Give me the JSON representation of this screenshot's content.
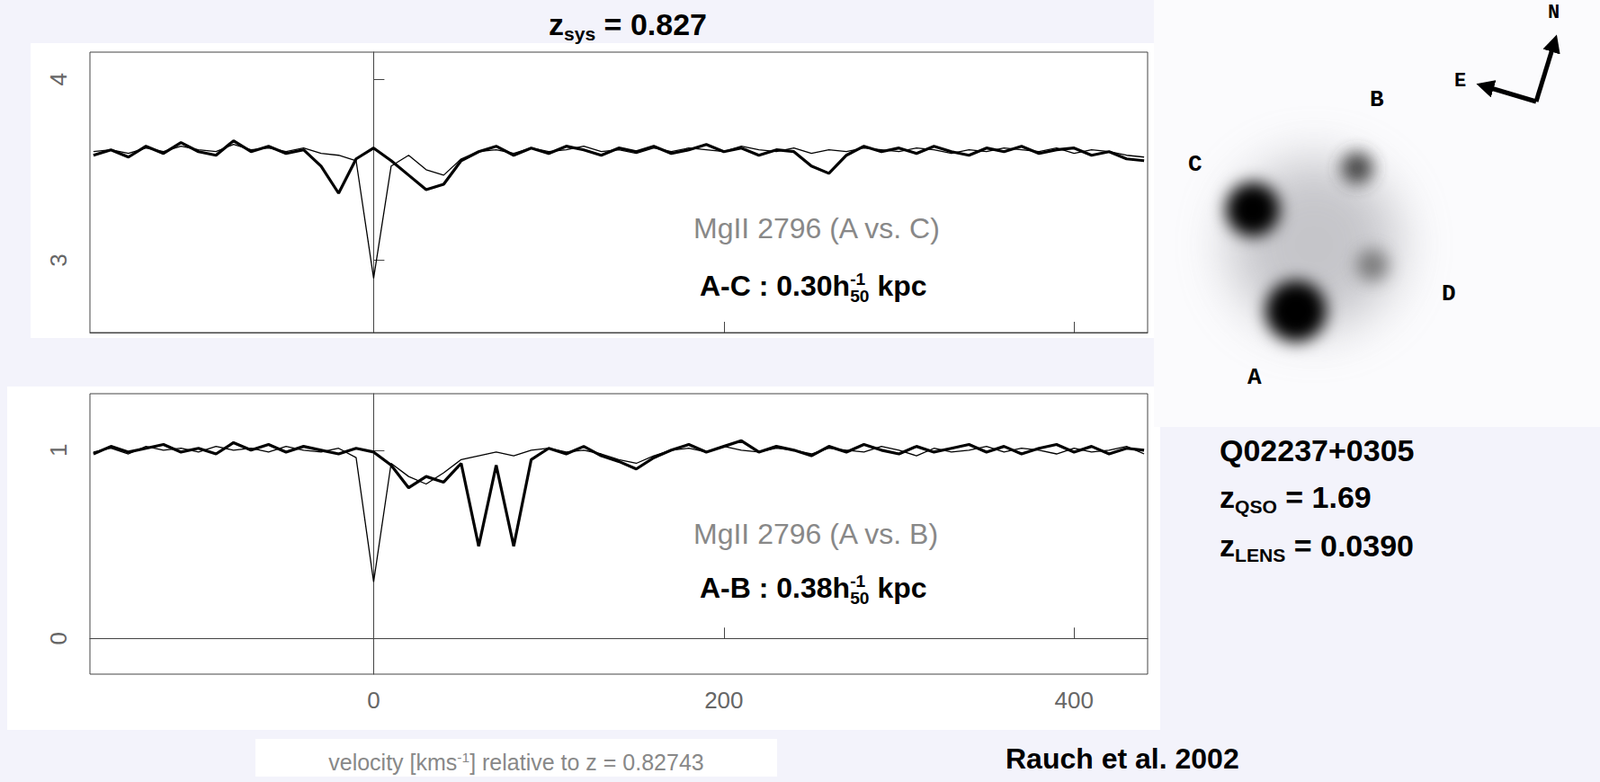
{
  "chart_data": [
    {
      "type": "line",
      "annotation": "MgII 2796 (A vs. C)",
      "separation": {
        "text": "A-C : 0.30h",
        "sub": "50",
        "sup": "-1",
        "after": " kpc"
      },
      "x": [
        -160,
        -150,
        -140,
        -130,
        -120,
        -110,
        -100,
        -90,
        -80,
        -70,
        -60,
        -50,
        -40,
        -30,
        -20,
        -10,
        0,
        10,
        20,
        30,
        40,
        50,
        60,
        70,
        80,
        90,
        100,
        110,
        120,
        130,
        140,
        150,
        160,
        170,
        180,
        190,
        200,
        210,
        220,
        230,
        240,
        250,
        260,
        270,
        280,
        290,
        300,
        310,
        320,
        330,
        340,
        350,
        360,
        370,
        380,
        390,
        400,
        410,
        420,
        430,
        440
      ],
      "series": [
        {
          "color": "#000000",
          "line_style": "thin",
          "values": [
            3.6,
            3.61,
            3.59,
            3.62,
            3.6,
            3.63,
            3.61,
            3.6,
            3.64,
            3.61,
            3.62,
            3.6,
            3.62,
            3.59,
            3.58,
            3.55,
            2.9,
            3.52,
            3.58,
            3.5,
            3.47,
            3.56,
            3.6,
            3.61,
            3.59,
            3.62,
            3.6,
            3.61,
            3.63,
            3.6,
            3.61,
            3.59,
            3.62,
            3.6,
            3.62,
            3.61,
            3.6,
            3.63,
            3.61,
            3.6,
            3.62,
            3.59,
            3.61,
            3.6,
            3.62,
            3.61,
            3.6,
            3.62,
            3.61,
            3.59,
            3.61,
            3.6,
            3.62,
            3.61,
            3.6,
            3.62,
            3.59,
            3.61,
            3.6,
            3.58,
            3.57
          ]
        },
        {
          "color": "#000000",
          "line_style": "thick",
          "values": [
            3.58,
            3.61,
            3.57,
            3.63,
            3.59,
            3.65,
            3.6,
            3.58,
            3.66,
            3.6,
            3.63,
            3.59,
            3.61,
            3.52,
            3.37,
            3.56,
            3.62,
            3.55,
            3.47,
            3.39,
            3.42,
            3.55,
            3.6,
            3.63,
            3.58,
            3.62,
            3.59,
            3.63,
            3.61,
            3.58,
            3.62,
            3.6,
            3.63,
            3.59,
            3.61,
            3.64,
            3.6,
            3.62,
            3.58,
            3.61,
            3.6,
            3.52,
            3.48,
            3.58,
            3.63,
            3.6,
            3.62,
            3.59,
            3.63,
            3.6,
            3.58,
            3.62,
            3.6,
            3.63,
            3.59,
            3.61,
            3.62,
            3.58,
            3.6,
            3.56,
            3.55
          ]
        }
      ],
      "xlim": [
        -162,
        442
      ],
      "xticks": [
        0,
        200,
        400
      ],
      "ylim": [
        2.6,
        4.15
      ],
      "yticks": [
        3,
        4
      ],
      "tick_labels": "y"
    },
    {
      "type": "line",
      "annotation": "MgII 2796 (A vs. B)",
      "separation": {
        "text": "A-B : 0.38h",
        "sub": "50",
        "sup": "-1",
        "after": " kpc"
      },
      "x_label": {
        "text": "velocity [kms",
        "sup": "-1",
        "after": "] relative to z = 0.82743"
      },
      "x": [
        -160,
        -150,
        -140,
        -130,
        -120,
        -110,
        -100,
        -90,
        -80,
        -70,
        -60,
        -50,
        -40,
        -30,
        -20,
        -10,
        0,
        10,
        20,
        30,
        40,
        50,
        60,
        70,
        80,
        90,
        100,
        110,
        120,
        130,
        140,
        150,
        160,
        170,
        180,
        190,
        200,
        210,
        220,
        230,
        240,
        250,
        260,
        270,
        280,
        290,
        300,
        310,
        320,
        330,
        340,
        350,
        360,
        370,
        380,
        390,
        400,
        410,
        420,
        430,
        440
      ],
      "series": [
        {
          "color": "#000000",
          "line_style": "thin",
          "values": [
            0.99,
            1.01,
            0.98,
            1.02,
            1.0,
            1.01,
            0.99,
            1.02,
            1.0,
            1.01,
            0.99,
            1.02,
            1.0,
            0.99,
            1.01,
            0.96,
            0.3,
            0.93,
            0.86,
            0.82,
            0.88,
            0.95,
            0.97,
            0.99,
            0.97,
            1.0,
            1.01,
            0.99,
            1.0,
            0.98,
            0.95,
            0.93,
            0.97,
            1.0,
            1.01,
            0.99,
            1.02,
            1.0,
            0.99,
            1.01,
            1.0,
            0.98,
            1.01,
            1.0,
            0.99,
            1.02,
            1.0,
            0.97,
            1.01,
            0.99,
            1.0,
            1.02,
            0.99,
            1.01,
            1.0,
            0.98,
            1.01,
            0.99,
            1.0,
            1.02,
            0.98
          ]
        },
        {
          "color": "#000000",
          "line_style": "thick",
          "values": [
            0.98,
            1.02,
            0.99,
            1.01,
            1.03,
            0.99,
            1.01,
            0.98,
            1.04,
            1.0,
            1.03,
            0.99,
            1.02,
            1.0,
            0.98,
            1.01,
            0.99,
            0.92,
            0.8,
            0.86,
            0.83,
            0.93,
            0.49,
            0.92,
            0.49,
            0.95,
            1.01,
            0.98,
            1.02,
            0.97,
            0.94,
            0.9,
            0.96,
            1.0,
            1.03,
            0.99,
            1.02,
            1.05,
            0.99,
            1.02,
            1.0,
            0.97,
            1.02,
            0.99,
            1.03,
            1.0,
            0.98,
            1.02,
            0.99,
            1.01,
            1.03,
            0.99,
            1.02,
            0.98,
            1.01,
            1.03,
            0.99,
            1.02,
            0.98,
            1.01,
            1.0
          ]
        }
      ],
      "xlim": [
        -162,
        442
      ],
      "xticks": [
        0,
        200,
        400
      ],
      "ylim": [
        -0.19,
        1.3
      ],
      "yticks": [
        0,
        1
      ]
    }
  ],
  "header": {
    "text": "z",
    "sub": "sys",
    "after": " = 0.827"
  },
  "object": {
    "name": "Q02237+0305",
    "lines": [
      {
        "text": "z",
        "sub": "QSO",
        "after": " = 1.69"
      },
      {
        "text": "z",
        "sub": "LENS",
        "after": " = 0.0390"
      }
    ]
  },
  "credit": "Rauch et al. 2002",
  "image": {
    "labels": [
      "A",
      "B",
      "C",
      "D"
    ],
    "compass": [
      "N",
      "E"
    ]
  }
}
